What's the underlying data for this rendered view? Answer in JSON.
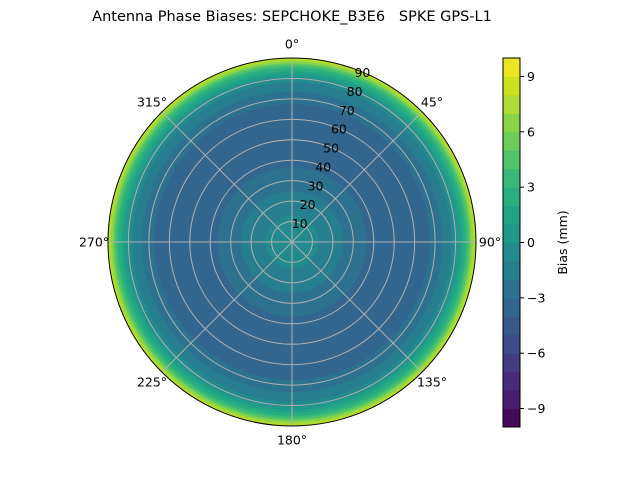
{
  "chart_data": {
    "type": "polar-contour",
    "title": "Antenna Phase Biases: SEPCHOKE_B3E6   SPKE GPS-L1",
    "angle_ticks": [
      "0°",
      "45°",
      "90°",
      "135°",
      "180°",
      "225°",
      "270°",
      "315°"
    ],
    "radial_ticks": [
      10,
      20,
      30,
      40,
      50,
      60,
      70,
      80,
      90
    ],
    "radial_range": [
      0,
      90
    ],
    "grid": true,
    "colormap": "viridis",
    "colorbar": {
      "label": "Bias (mm)",
      "range": [
        -10,
        10
      ],
      "ticks": [
        -9,
        -6,
        -3,
        0,
        3,
        6,
        9
      ],
      "levels": 20,
      "placement": "right"
    },
    "profile": {
      "zenith_deg": [
        0,
        10,
        20,
        30,
        40,
        50,
        60,
        70,
        80,
        85,
        90
      ],
      "bias_mm": [
        -0.5,
        -0.8,
        -1.5,
        -2.5,
        -3.3,
        -3.7,
        -3.6,
        -2.8,
        -0.5,
        3,
        8.5
      ]
    }
  }
}
